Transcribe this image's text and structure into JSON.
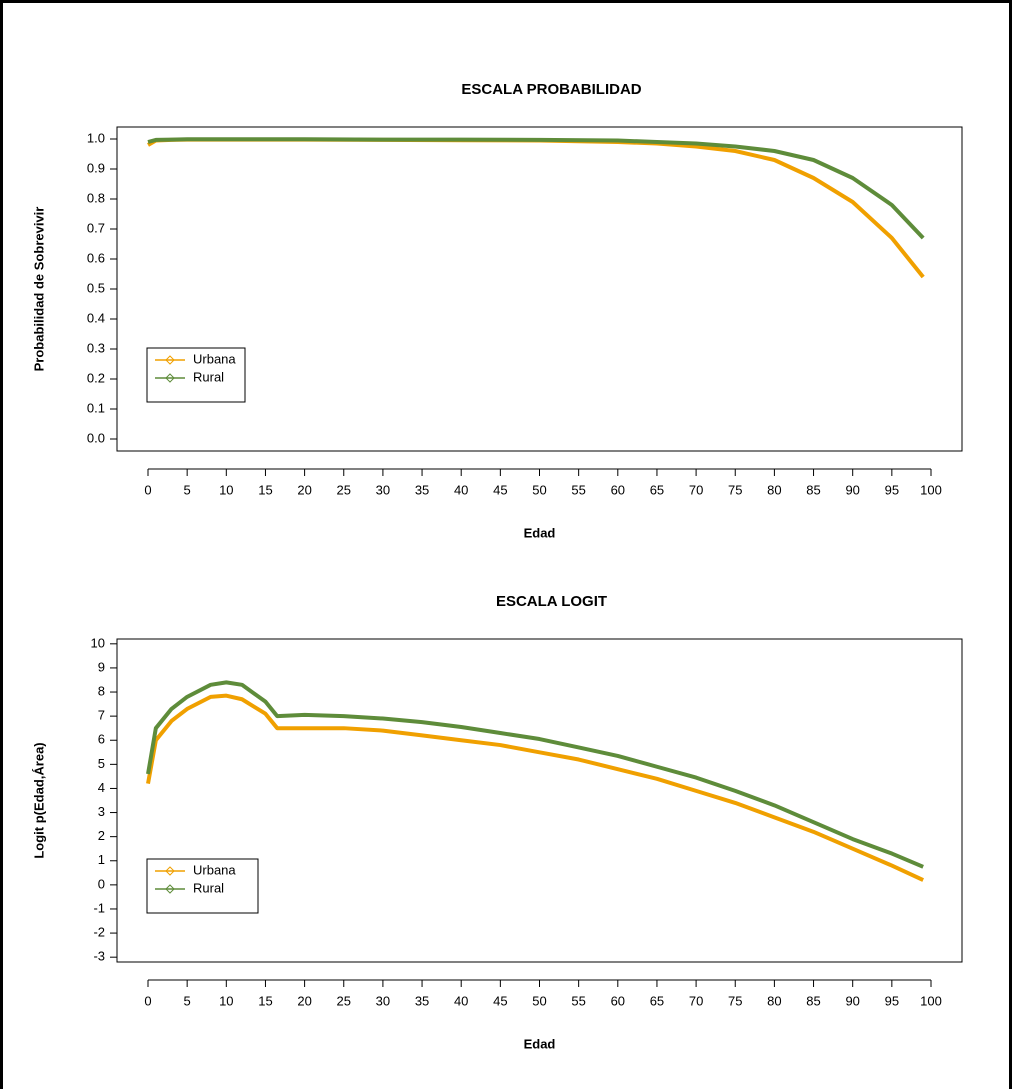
{
  "chart_data": [
    {
      "type": "line",
      "title": "ESCALA PROBABILIDAD",
      "xlabel": "Edad",
      "ylabel": "Probabilidad de Sobrevivir",
      "x": [
        0,
        1,
        3,
        5,
        10,
        20,
        30,
        40,
        50,
        60,
        65,
        70,
        75,
        80,
        85,
        90,
        95,
        99
      ],
      "series": [
        {
          "name": "Urbana",
          "color": "#f0a000",
          "values": [
            0.98,
            0.995,
            0.997,
            0.998,
            0.998,
            0.998,
            0.997,
            0.996,
            0.995,
            0.99,
            0.985,
            0.975,
            0.96,
            0.93,
            0.87,
            0.79,
            0.67,
            0.54
          ]
        },
        {
          "name": "Rural",
          "color": "#5e8c3a",
          "values": [
            0.99,
            0.997,
            0.998,
            0.999,
            0.999,
            0.999,
            0.998,
            0.998,
            0.997,
            0.995,
            0.99,
            0.985,
            0.975,
            0.96,
            0.93,
            0.87,
            0.78,
            0.67
          ]
        }
      ],
      "xlim": [
        -3.96,
        103.96
      ],
      "ylim": [
        -0.04,
        1.04
      ],
      "xticks": [
        0,
        5,
        10,
        15,
        20,
        25,
        30,
        35,
        40,
        45,
        50,
        55,
        60,
        65,
        70,
        75,
        80,
        85,
        90,
        95,
        100
      ],
      "yticks": [
        {
          "value": 0,
          "label": "0.0"
        },
        0.1,
        0.2,
        0.3,
        0.4,
        0.5,
        0.6,
        0.7,
        0.8,
        0.9,
        {
          "value": 1,
          "label": "1.0"
        }
      ],
      "legend": "bottomleft"
    },
    {
      "type": "line",
      "title": "ESCALA LOGIT",
      "xlabel": "Edad",
      "ylabel": "Logit p(Edad,Área)",
      "x": [
        0,
        1,
        3,
        5,
        8,
        10,
        12,
        15,
        16.5,
        20,
        25,
        30,
        35,
        40,
        45,
        50,
        55,
        60,
        65,
        70,
        75,
        80,
        85,
        90,
        95,
        99
      ],
      "series": [
        {
          "name": "Urbana",
          "color": "#f0a000",
          "values": [
            4.2,
            6.0,
            6.8,
            7.3,
            7.8,
            7.85,
            7.7,
            7.1,
            6.5,
            6.5,
            6.5,
            6.4,
            6.2,
            6.0,
            5.8,
            5.5,
            5.2,
            4.8,
            4.4,
            3.9,
            3.4,
            2.8,
            2.2,
            1.5,
            0.8,
            0.2
          ]
        },
        {
          "name": "Rural",
          "color": "#5e8c3a",
          "values": [
            4.6,
            6.5,
            7.3,
            7.8,
            8.3,
            8.4,
            8.3,
            7.6,
            7.0,
            7.05,
            7.0,
            6.9,
            6.75,
            6.55,
            6.3,
            6.05,
            5.7,
            5.35,
            4.9,
            4.45,
            3.9,
            3.3,
            2.6,
            1.9,
            1.3,
            0.75
          ]
        }
      ],
      "xlim": [
        -3.96,
        103.96
      ],
      "ylim": [
        -3.2,
        10.2
      ],
      "xticks": [
        0,
        5,
        10,
        15,
        20,
        25,
        30,
        35,
        40,
        45,
        50,
        55,
        60,
        65,
        70,
        75,
        80,
        85,
        90,
        95,
        100
      ],
      "yticks": [
        -3,
        -2,
        -1,
        0,
        1,
        2,
        3,
        4,
        5,
        6,
        7,
        8,
        9,
        10
      ],
      "legend": "bottomleft"
    }
  ]
}
